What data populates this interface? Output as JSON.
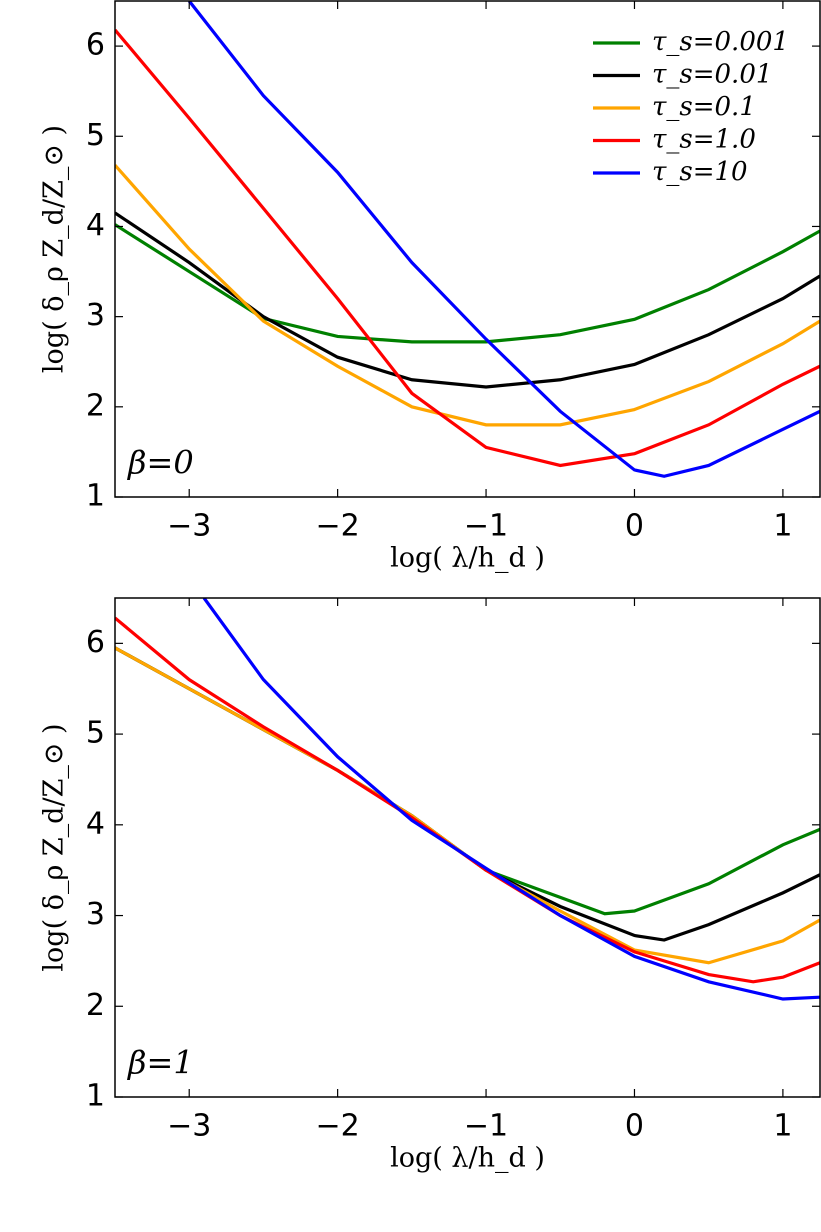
{
  "chart_data": [
    {
      "type": "line",
      "xlabel": "log( λ/h_d )",
      "ylabel": "log( δ_ρ Z_d/Z_⊙ )",
      "annotation": "β=0",
      "xlim": [
        -3.5,
        1.25
      ],
      "ylim": [
        1,
        6.5
      ],
      "xticks": [
        {
          "value": -3,
          "label": "−3"
        },
        {
          "value": -2,
          "label": "−2"
        },
        {
          "value": -1,
          "label": "−1"
        },
        0,
        1
      ],
      "yticks": [
        1,
        2,
        3,
        4,
        5,
        6
      ],
      "legend": "upper right",
      "series": [
        {
          "name": "τ_s=0.001",
          "color": "#008000",
          "x": [
            -3.5,
            -3,
            -2.5,
            -2,
            -1.5,
            -1,
            -0.5,
            0,
            0.5,
            1,
            1.25
          ],
          "values": [
            4.02,
            3.5,
            2.98,
            2.78,
            2.72,
            2.72,
            2.8,
            2.97,
            3.3,
            3.72,
            3.95
          ]
        },
        {
          "name": "τ_s=0.01",
          "color": "#000000",
          "x": [
            -3.5,
            -3,
            -2.5,
            -2,
            -1.5,
            -1,
            -0.5,
            0,
            0.5,
            1,
            1.25
          ],
          "values": [
            4.15,
            3.6,
            3.0,
            2.55,
            2.3,
            2.22,
            2.3,
            2.47,
            2.8,
            3.2,
            3.45
          ]
        },
        {
          "name": "τ_s=0.1",
          "color": "#ffa500",
          "x": [
            -3.5,
            -3,
            -2.5,
            -2,
            -1.5,
            -1,
            -0.5,
            0,
            0.5,
            1,
            1.25
          ],
          "values": [
            4.68,
            3.75,
            2.95,
            2.45,
            2.0,
            1.8,
            1.8,
            1.97,
            2.28,
            2.7,
            2.95
          ]
        },
        {
          "name": "τ_s=1.0",
          "color": "#ff0000",
          "x": [
            -3.5,
            -3,
            -2.5,
            -2,
            -1.5,
            -1,
            -0.5,
            0,
            0.5,
            1,
            1.25
          ],
          "values": [
            6.18,
            5.2,
            4.2,
            3.2,
            2.15,
            1.55,
            1.35,
            1.48,
            1.8,
            2.25,
            2.45
          ]
        },
        {
          "name": "τ_s=10",
          "color": "#0000ff",
          "x": [
            -3,
            -2.5,
            -2,
            -1.5,
            -1,
            -0.5,
            0,
            0.2,
            0.5,
            1,
            1.25
          ],
          "values": [
            6.5,
            5.45,
            4.6,
            3.6,
            2.75,
            1.95,
            1.3,
            1.23,
            1.35,
            1.75,
            1.95
          ]
        }
      ]
    },
    {
      "type": "line",
      "xlabel": "log( λ/h_d )",
      "ylabel": "log( δ_ρ Z_d/Z_⊙ )",
      "annotation": "β=1",
      "xlim": [
        -3.5,
        1.25
      ],
      "ylim": [
        1,
        6.5
      ],
      "xticks": [
        {
          "value": -3,
          "label": "−3"
        },
        {
          "value": -2,
          "label": "−2"
        },
        {
          "value": -1,
          "label": "−1"
        },
        0,
        1
      ],
      "yticks": [
        1,
        2,
        3,
        4,
        5,
        6
      ],
      "series": [
        {
          "color": "#008000",
          "x": [
            -3.5,
            -3,
            -2.5,
            -2,
            -1.5,
            -1,
            -0.5,
            -0.2,
            0,
            0.5,
            1,
            1.25
          ],
          "values": [
            5.95,
            5.5,
            5.05,
            4.6,
            4.1,
            3.5,
            3.2,
            3.02,
            3.05,
            3.35,
            3.78,
            3.95
          ]
        },
        {
          "color": "#000000",
          "x": [
            -3.5,
            -3,
            -2.5,
            -2,
            -1.5,
            -1,
            -0.5,
            0,
            0.2,
            0.5,
            1,
            1.25
          ],
          "values": [
            5.95,
            5.5,
            5.05,
            4.6,
            4.1,
            3.5,
            3.1,
            2.78,
            2.73,
            2.9,
            3.25,
            3.45
          ]
        },
        {
          "color": "#ffa500",
          "x": [
            -3.5,
            -3,
            -2.5,
            -2,
            -1.5,
            -1,
            -0.5,
            0,
            0.5,
            1,
            1.25
          ],
          "values": [
            5.95,
            5.5,
            5.05,
            4.6,
            4.1,
            3.5,
            3.05,
            2.62,
            2.48,
            2.72,
            2.95
          ]
        },
        {
          "color": "#ff0000",
          "x": [
            -3.5,
            -3,
            -2.5,
            -2,
            -1.5,
            -1,
            -0.5,
            0,
            0.5,
            0.8,
            1,
            1.25
          ],
          "values": [
            6.28,
            5.6,
            5.08,
            4.6,
            4.08,
            3.5,
            3.0,
            2.6,
            2.35,
            2.27,
            2.32,
            2.48
          ]
        },
        {
          "color": "#0000ff",
          "x": [
            -2.9,
            -2.5,
            -2,
            -1.5,
            -1,
            -0.5,
            0,
            0.5,
            1,
            1.25
          ],
          "values": [
            6.5,
            5.6,
            4.75,
            4.05,
            3.52,
            3.0,
            2.55,
            2.27,
            2.08,
            2.1
          ]
        }
      ]
    }
  ]
}
